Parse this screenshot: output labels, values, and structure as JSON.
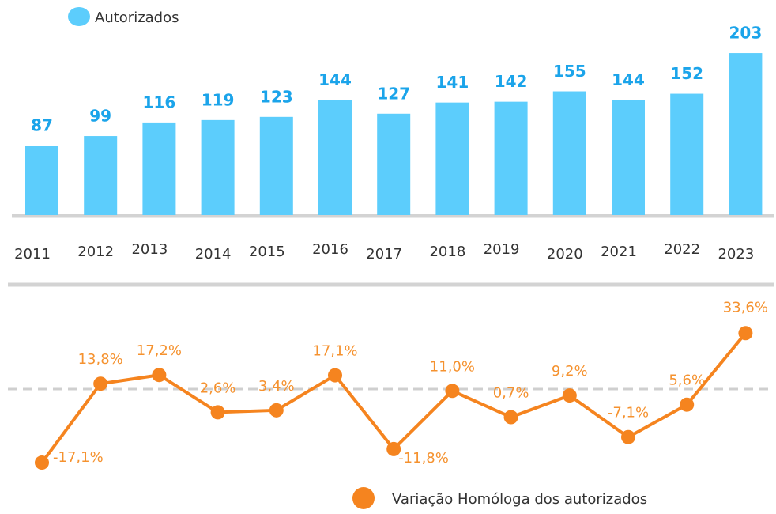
{
  "chart_data": [
    {
      "type": "bar",
      "legend": "Autorizados",
      "color": "#5ccdfc",
      "label_color": "#1ba4ea",
      "categories": [
        "2011",
        "2012",
        "2013",
        "2014",
        "2015",
        "2016",
        "2017",
        "2018",
        "2019",
        "2020",
        "2021",
        "2022",
        "2023"
      ],
      "values": [
        87,
        99,
        116,
        119,
        123,
        144,
        127,
        141,
        142,
        155,
        144,
        152,
        203
      ],
      "ylim": [
        0,
        210
      ]
    },
    {
      "type": "line",
      "legend": "Variação Homóloga dos autorizados",
      "color": "#f5841f",
      "label_color": "#f5922f",
      "values": [
        -17.1,
        13.8,
        17.2,
        2.6,
        3.4,
        17.1,
        -11.8,
        11.0,
        0.7,
        9.2,
        -7.1,
        5.6,
        33.6
      ],
      "value_labels": [
        "-17,1%",
        "13,8%",
        "17,2%",
        "2,6%",
        "3,4%",
        "17,1%",
        "-11,8%",
        "11,0%",
        "0,7%",
        "9,2%",
        "-7,1%",
        "5,6%",
        "33,6%"
      ],
      "ylim": [
        -20,
        40
      ]
    }
  ]
}
